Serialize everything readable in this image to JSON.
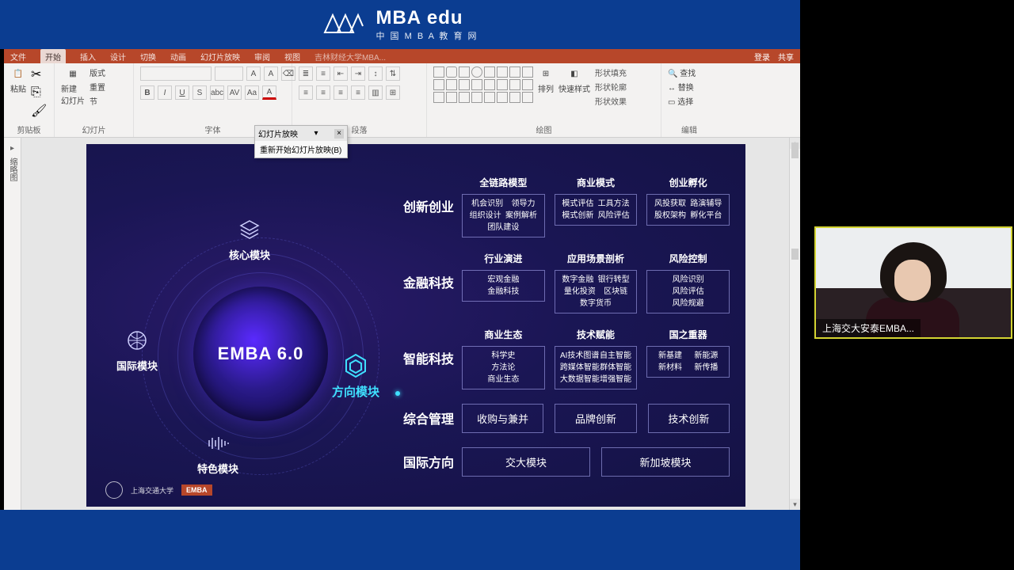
{
  "header": {
    "brand_main": "MBA edu",
    "brand_sub": "中 国 M B A 教 育 网"
  },
  "ribbon": {
    "tabs": [
      "文件",
      "开始",
      "插入",
      "设计",
      "切换",
      "动画",
      "幻灯片放映",
      "审阅",
      "视图"
    ],
    "active_tab": "开始",
    "doc_hint": "吉林财经大学MBA...",
    "right": {
      "login": "登录",
      "share": "共享"
    },
    "groups": {
      "clipboard": {
        "paste": "粘贴",
        "cut": "剪切",
        "label": "剪贴板"
      },
      "slides": {
        "new": "新建\n幻灯片",
        "layout": "版式",
        "reset": "重置",
        "section": "节",
        "label": "幻灯片"
      },
      "font": {
        "label": "字体"
      },
      "paragraph": {
        "label": "段落"
      },
      "drawing": {
        "arrange": "排列",
        "quick": "快速样式",
        "fill": "形状填充",
        "outline": "形状轮廓",
        "effects": "形状效果",
        "label": "绘图"
      },
      "editing": {
        "find": "查找",
        "replace": "替换",
        "select": "选择",
        "label": "编辑"
      }
    },
    "popup": {
      "title": "幻灯片放映",
      "item": "重新开始幻灯片放映(B)"
    }
  },
  "slide": {
    "center_title": "EMBA 6.0",
    "nodes": {
      "top": "核心模块",
      "left": "国际模块",
      "bottom": "特色模块",
      "right": "方向模块"
    },
    "rows": [
      {
        "label": "创新创业",
        "cols": [
          {
            "head": "全链路模型",
            "lines": [
              [
                "机会识别",
                "领导力"
              ],
              [
                "组织设计",
                "案例解析"
              ],
              [
                "团队建设",
                ""
              ]
            ]
          },
          {
            "head": "商业模式",
            "lines": [
              [
                "模式评估",
                "工具方法"
              ],
              [
                "模式创新",
                "风险评估"
              ]
            ]
          },
          {
            "head": "创业孵化",
            "lines": [
              [
                "风投获取",
                "路演辅导"
              ],
              [
                "股权架构",
                "孵化平台"
              ]
            ]
          }
        ]
      },
      {
        "label": "金融科技",
        "cols": [
          {
            "head": "行业演进",
            "lines": [
              [
                "宏观金融",
                ""
              ],
              [
                "金融科技",
                ""
              ]
            ]
          },
          {
            "head": "应用场景剖析",
            "lines": [
              [
                "数字金融",
                "银行转型"
              ],
              [
                "量化投资",
                "区块链"
              ],
              [
                "数字货币",
                ""
              ]
            ]
          },
          {
            "head": "风险控制",
            "lines": [
              [
                "风险识别",
                ""
              ],
              [
                "风险评估",
                ""
              ],
              [
                "风险规避",
                ""
              ]
            ]
          }
        ]
      },
      {
        "label": "智能科技",
        "cols": [
          {
            "head": "商业生态",
            "lines": [
              [
                "科学史",
                ""
              ],
              [
                "方法论",
                ""
              ],
              [
                "商业生态",
                ""
              ]
            ]
          },
          {
            "head": "技术赋能",
            "lines": [
              [
                "AI技术图谱",
                "自主智能"
              ],
              [
                "跨媒体智能",
                "群体智能"
              ],
              [
                "大数据智能",
                "增强智能"
              ]
            ]
          },
          {
            "head": "国之重器",
            "lines": [
              [
                "新基建",
                "新能源"
              ],
              [
                "新材料",
                "新传播"
              ]
            ]
          }
        ]
      }
    ],
    "row_simple1": {
      "label": "综合管理",
      "items": [
        "收购与兼并",
        "品牌创新",
        "技术创新"
      ]
    },
    "row_simple2": {
      "label": "国际方向",
      "items": [
        "交大模块",
        "新加坡模块"
      ]
    },
    "footer": {
      "uni": "上海交通大学",
      "emba": "EMBA"
    }
  },
  "webcam": {
    "caption": "上海交大安泰EMBA..."
  },
  "colors": {
    "header_blue": "#0b3d91",
    "ribbon_red": "#b7472a",
    "slide_bg": "#1a1654",
    "accent_cyan": "#3fe0ff",
    "webcam_border": "#d4d432"
  }
}
